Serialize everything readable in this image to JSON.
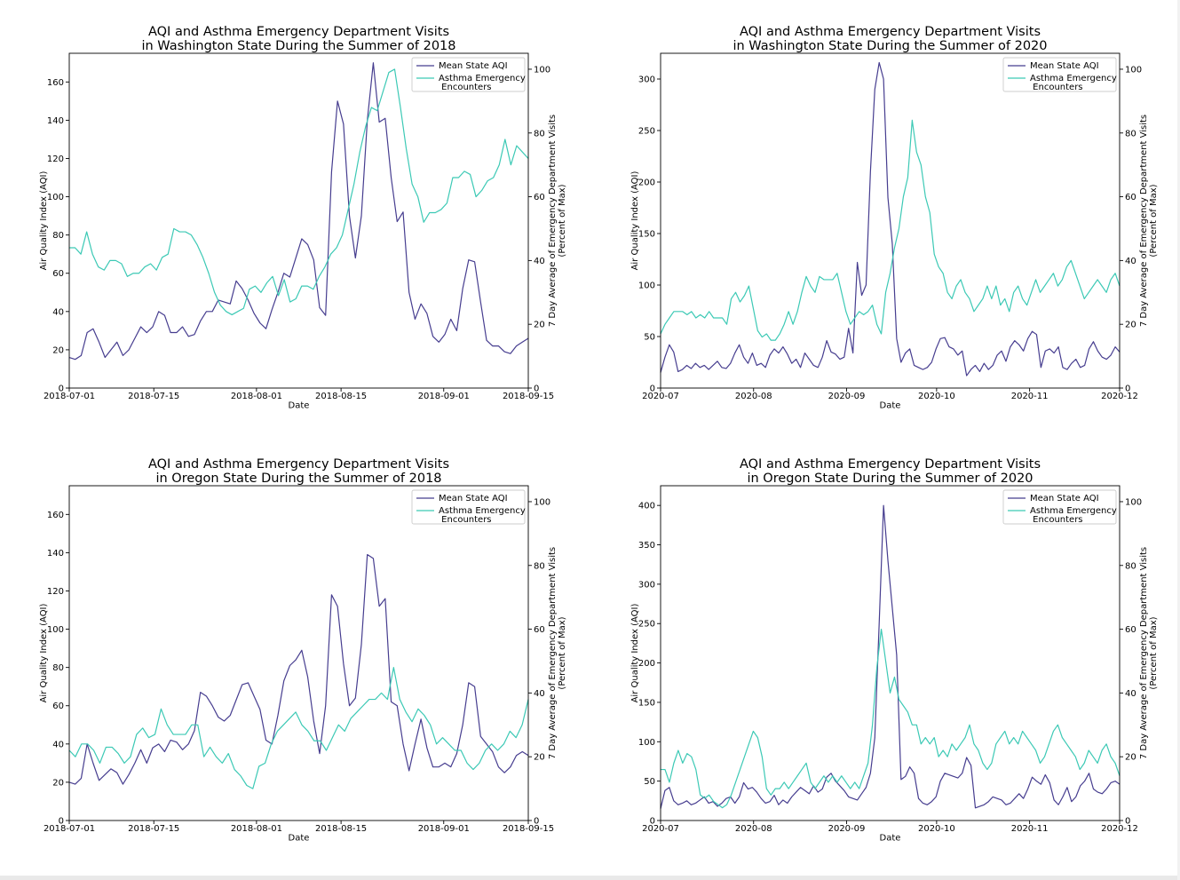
{
  "colors": {
    "aqi": "#463d8f",
    "asthma": "#3cc9b5"
  },
  "chart_data": [
    {
      "type": "line",
      "title": [
        "AQI and Asthma Emergency Department Visits",
        "in Washington State During the Summer of 2018"
      ],
      "xlabel": "Date",
      "ylabel": "Air Quality Index (AQI)",
      "y2label": [
        "7 Day Average of Emergency Department Visits",
        "(Percent of Max)"
      ],
      "x_start": "2018-07-01",
      "x_end": "2018-09-15",
      "xticks": [
        {
          "day": 0,
          "label": "2018-07-01"
        },
        {
          "day": 14,
          "label": "2018-07-15"
        },
        {
          "day": 31,
          "label": "2018-08-01"
        },
        {
          "day": 45,
          "label": "2018-08-15"
        },
        {
          "day": 62,
          "label": "2018-09-01"
        },
        {
          "day": 76,
          "label": "2018-09-15"
        }
      ],
      "ylim": [
        0,
        175
      ],
      "yticks": [
        0,
        20,
        40,
        60,
        80,
        100,
        120,
        140,
        160
      ],
      "y2lim": [
        0,
        105
      ],
      "y2ticks": [
        0,
        20,
        40,
        60,
        80,
        100
      ],
      "legend": [
        "Mean State AQI",
        "Asthma Emergency\n Encounters"
      ],
      "series": [
        {
          "name": "Mean State AQI",
          "axis": "left",
          "values": [
            16,
            15,
            17,
            29,
            31,
            24,
            16,
            20,
            24,
            17,
            20,
            26,
            32,
            29,
            32,
            40,
            38,
            29,
            29,
            32,
            27,
            28,
            35,
            40,
            40,
            46,
            45,
            44,
            56,
            52,
            46,
            39,
            34,
            31,
            41,
            50,
            60,
            58,
            68,
            78,
            75,
            67,
            42,
            38,
            113,
            150,
            138,
            90,
            68,
            90,
            140,
            170,
            139,
            141,
            110,
            87,
            92,
            50,
            36,
            44,
            39,
            27,
            24,
            28,
            36,
            30,
            52,
            67,
            66,
            45,
            25,
            22,
            22,
            19,
            18,
            22,
            24,
            26
          ]
        },
        {
          "name": "Asthma Emergency\n Encounters",
          "axis": "right",
          "values": [
            44,
            44,
            42,
            49,
            42,
            38,
            37,
            40,
            40,
            39,
            35,
            36,
            36,
            38,
            39,
            37,
            41,
            42,
            50,
            49,
            49,
            48,
            45,
            41,
            36,
            30,
            26,
            24,
            23,
            24,
            25,
            31,
            32,
            30,
            33,
            35,
            29,
            34,
            27,
            28,
            32,
            32,
            31,
            35,
            38,
            42,
            44,
            48,
            56,
            64,
            74,
            82,
            88,
            87,
            93,
            99,
            100,
            88,
            75,
            64,
            60,
            52,
            55,
            55,
            56,
            58,
            66,
            66,
            68,
            67,
            60,
            62,
            65,
            66,
            70,
            78,
            70,
            76,
            74,
            72
          ]
        }
      ]
    },
    {
      "type": "line",
      "title": [
        "AQI and Asthma Emergency Department Visits",
        "in Washington State During the Summer of 2020"
      ],
      "xlabel": "Date",
      "ylabel": "Air Quality Index (AQI)",
      "y2label": [
        "7 Day Average of Emergency Department Visits",
        "(Percent of Max)"
      ],
      "x_start": "2020-07-01",
      "x_end": "2020-12-01",
      "xticks": [
        {
          "day": 0,
          "label": "2020-07"
        },
        {
          "day": 31,
          "label": "2020-08"
        },
        {
          "day": 62,
          "label": "2020-09"
        },
        {
          "day": 92,
          "label": "2020-10"
        },
        {
          "day": 123,
          "label": "2020-11"
        },
        {
          "day": 153,
          "label": "2020-12"
        }
      ],
      "ylim": [
        0,
        325
      ],
      "yticks": [
        0,
        50,
        100,
        150,
        200,
        250,
        300
      ],
      "y2lim": [
        0,
        105
      ],
      "y2ticks": [
        0,
        20,
        40,
        60,
        80,
        100
      ],
      "legend": [
        "Mean State AQI",
        "Asthma Emergency\n Encounters"
      ],
      "series": [
        {
          "name": "Mean State AQI",
          "axis": "left",
          "values": [
            15,
            30,
            42,
            35,
            16,
            18,
            22,
            19,
            24,
            20,
            22,
            18,
            22,
            26,
            20,
            19,
            24,
            34,
            42,
            30,
            24,
            34,
            22,
            24,
            20,
            32,
            38,
            34,
            40,
            33,
            24,
            28,
            20,
            34,
            28,
            22,
            20,
            30,
            46,
            35,
            33,
            28,
            30,
            58,
            34,
            122,
            90,
            100,
            210,
            290,
            316,
            300,
            185,
            140,
            48,
            25,
            34,
            38,
            22,
            20,
            18,
            20,
            25,
            38,
            48,
            49,
            40,
            38,
            32,
            36,
            12,
            18,
            22,
            16,
            24,
            18,
            22,
            32,
            36,
            26,
            40,
            46,
            42,
            36,
            48,
            55,
            52,
            20,
            36,
            38,
            34,
            40,
            20,
            18,
            24,
            28,
            20,
            22,
            38,
            45,
            36,
            30,
            28,
            32,
            40,
            35
          ]
        },
        {
          "name": "Asthma Emergency\n Encounters",
          "axis": "right",
          "values": [
            17,
            20,
            22,
            24,
            24,
            24,
            23,
            24,
            22,
            23,
            22,
            24,
            22,
            22,
            22,
            20,
            28,
            30,
            27,
            29,
            32,
            25,
            18,
            16,
            17,
            15,
            15,
            17,
            20,
            24,
            20,
            24,
            30,
            35,
            32,
            30,
            35,
            34,
            34,
            34,
            36,
            30,
            24,
            20,
            22,
            24,
            23,
            24,
            26,
            20,
            17,
            30,
            36,
            44,
            50,
            60,
            66,
            84,
            74,
            70,
            60,
            55,
            42,
            38,
            36,
            30,
            28,
            32,
            34,
            30,
            28,
            24,
            26,
            28,
            32,
            28,
            32,
            26,
            28,
            24,
            30,
            32,
            28,
            26,
            30,
            34,
            30,
            32,
            34,
            36,
            32,
            34,
            38,
            40,
            36,
            32,
            28,
            30,
            32,
            34,
            32,
            30,
            34,
            36,
            32
          ]
        }
      ]
    },
    {
      "type": "line",
      "title": [
        "AQI and Asthma Emergency Department Visits",
        "in Oregon State During the Summer of 2018"
      ],
      "xlabel": "Date",
      "ylabel": "Air Quality Index (AQI)",
      "y2label": [
        "7 Day Average of Emergency Department Visits",
        "(Percent of Max)"
      ],
      "x_start": "2018-07-01",
      "x_end": "2018-09-15",
      "xticks": [
        {
          "day": 0,
          "label": "2018-07-01"
        },
        {
          "day": 14,
          "label": "2018-07-15"
        },
        {
          "day": 31,
          "label": "2018-08-01"
        },
        {
          "day": 45,
          "label": "2018-08-15"
        },
        {
          "day": 62,
          "label": "2018-09-01"
        },
        {
          "day": 76,
          "label": "2018-09-15"
        }
      ],
      "ylim": [
        0,
        175
      ],
      "yticks": [
        0,
        20,
        40,
        60,
        80,
        100,
        120,
        140,
        160
      ],
      "y2lim": [
        0,
        105
      ],
      "y2ticks": [
        0,
        20,
        40,
        60,
        80,
        100
      ],
      "legend": [
        "Mean State AQI",
        "Asthma Emergency\n Encounters"
      ],
      "series": [
        {
          "name": "Mean State AQI",
          "axis": "left",
          "values": [
            20,
            19,
            22,
            40,
            30,
            21,
            24,
            27,
            25,
            19,
            24,
            30,
            37,
            30,
            38,
            40,
            36,
            42,
            41,
            37,
            40,
            47,
            67,
            65,
            60,
            54,
            52,
            55,
            63,
            71,
            72,
            65,
            58,
            42,
            40,
            55,
            73,
            81,
            84,
            89,
            75,
            52,
            35,
            60,
            118,
            112,
            82,
            60,
            64,
            92,
            139,
            137,
            112,
            116,
            62,
            60,
            40,
            26,
            40,
            53,
            38,
            28,
            28,
            30,
            28,
            35,
            50,
            72,
            70,
            44,
            40,
            36,
            28,
            25,
            28,
            34,
            36,
            34
          ]
        },
        {
          "name": "Asthma Emergency\n Encounters",
          "axis": "right",
          "values": [
            22,
            20,
            24,
            24,
            22,
            18,
            23,
            23,
            21,
            18,
            20,
            27,
            29,
            26,
            27,
            35,
            30,
            27,
            27,
            27,
            30,
            30,
            20,
            23,
            20,
            18,
            21,
            16,
            14,
            11,
            10,
            17,
            18,
            24,
            28,
            30,
            32,
            34,
            30,
            28,
            25,
            25,
            22,
            26,
            30,
            28,
            32,
            34,
            36,
            38,
            38,
            40,
            38,
            48,
            38,
            34,
            31,
            35,
            33,
            30,
            24,
            26,
            24,
            22,
            22,
            18,
            16,
            18,
            22,
            24,
            22,
            24,
            28,
            26,
            30,
            38
          ]
        }
      ]
    },
    {
      "type": "line",
      "title": [
        "AQI and Asthma Emergency Department Visits",
        "in Oregon State During the Summer of 2020"
      ],
      "xlabel": "Date",
      "ylabel": "Air Quality Index (AQI)",
      "y2label": [
        "7 Day Average of Emergency Department Visits",
        "(Percent of Max)"
      ],
      "x_start": "2020-07-01",
      "x_end": "2020-12-01",
      "xticks": [
        {
          "day": 0,
          "label": "2020-07"
        },
        {
          "day": 31,
          "label": "2020-08"
        },
        {
          "day": 62,
          "label": "2020-09"
        },
        {
          "day": 92,
          "label": "2020-10"
        },
        {
          "day": 123,
          "label": "2020-11"
        },
        {
          "day": 153,
          "label": "2020-12"
        }
      ],
      "ylim": [
        0,
        425
      ],
      "yticks": [
        0,
        50,
        100,
        150,
        200,
        250,
        300,
        350,
        400
      ],
      "y2lim": [
        0,
        105
      ],
      "y2ticks": [
        0,
        20,
        40,
        60,
        80,
        100
      ],
      "legend": [
        "Mean State AQI",
        "Asthma Emergency\n Encounters"
      ],
      "series": [
        {
          "name": "Mean State AQI",
          "axis": "left",
          "values": [
            15,
            38,
            42,
            25,
            20,
            22,
            25,
            20,
            22,
            26,
            30,
            22,
            24,
            18,
            22,
            28,
            30,
            22,
            30,
            48,
            40,
            42,
            36,
            28,
            22,
            24,
            32,
            20,
            26,
            22,
            30,
            36,
            42,
            38,
            34,
            44,
            36,
            40,
            55,
            60,
            50,
            44,
            38,
            30,
            28,
            26,
            34,
            42,
            60,
            105,
            250,
            400,
            330,
            270,
            210,
            52,
            56,
            68,
            60,
            28,
            22,
            20,
            24,
            30,
            50,
            60,
            58,
            56,
            54,
            60,
            80,
            70,
            16,
            18,
            20,
            24,
            30,
            28,
            26,
            20,
            22,
            28,
            34,
            28,
            40,
            55,
            50,
            46,
            58,
            48,
            26,
            20,
            30,
            42,
            24,
            30,
            44,
            50,
            60,
            40,
            36,
            34,
            40,
            48,
            50,
            46
          ]
        },
        {
          "name": "Asthma Emergency\n Encounters",
          "axis": "right",
          "values": [
            16,
            16,
            12,
            18,
            22,
            18,
            21,
            20,
            16,
            8,
            7,
            8,
            6,
            5,
            4,
            5,
            8,
            12,
            16,
            20,
            24,
            28,
            26,
            20,
            10,
            8,
            10,
            10,
            12,
            10,
            12,
            14,
            16,
            18,
            12,
            10,
            12,
            14,
            12,
            14,
            12,
            14,
            12,
            10,
            12,
            10,
            14,
            18,
            30,
            48,
            60,
            50,
            40,
            45,
            38,
            36,
            34,
            30,
            30,
            24,
            26,
            24,
            26,
            20,
            22,
            20,
            24,
            22,
            24,
            26,
            30,
            24,
            22,
            18,
            16,
            18,
            24,
            26,
            28,
            24,
            26,
            24,
            28,
            26,
            24,
            22,
            18,
            20,
            24,
            28,
            30,
            26,
            24,
            22,
            20,
            16,
            18,
            22,
            20,
            18,
            22,
            24,
            20,
            18,
            14
          ]
        }
      ]
    }
  ]
}
